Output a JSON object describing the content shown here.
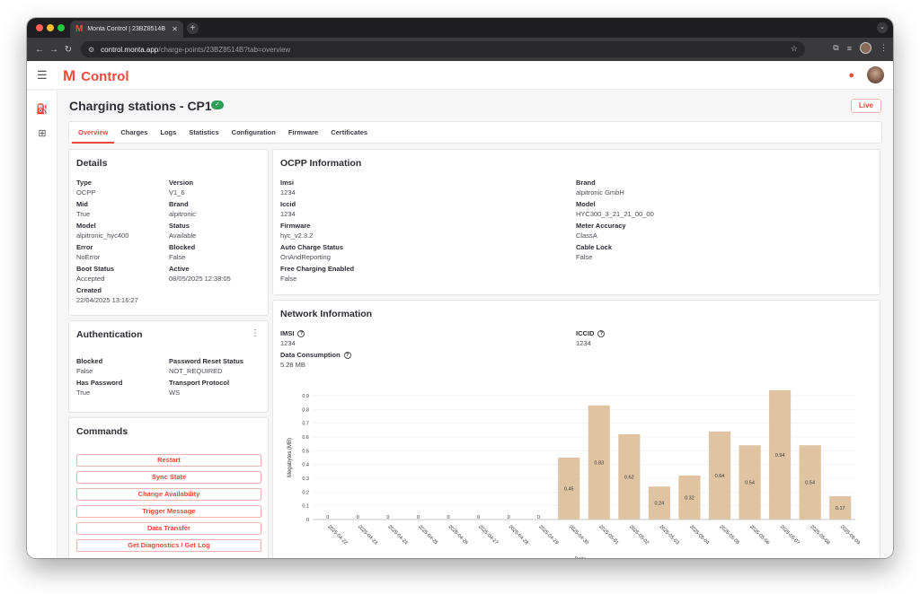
{
  "browser": {
    "tab_title": "Monta Control | 23BZ8514B",
    "tab_favicon": "M",
    "url_host": "control.monta.app",
    "url_path": "/charge-points/23BZ8514B?tab=overview"
  },
  "app": {
    "logo_mark": "M",
    "logo_text": "Control"
  },
  "page": {
    "title": "Charging stations - CP1",
    "live_label": "Live",
    "tabs": [
      "Overview",
      "Charges",
      "Logs",
      "Statistics",
      "Configuration",
      "Firmware",
      "Certificates"
    ],
    "active_tab": "Overview"
  },
  "details": {
    "title": "Details",
    "items": [
      {
        "k": "Type",
        "v": "OCPP"
      },
      {
        "k": "Version",
        "v": "V1_6"
      },
      {
        "k": "Mid",
        "v": "True"
      },
      {
        "k": "Brand",
        "v": "alpitronic"
      },
      {
        "k": "Model",
        "v": "alpitronic_hyc400"
      },
      {
        "k": "Status",
        "v": "Available"
      },
      {
        "k": "Error",
        "v": "NoError"
      },
      {
        "k": "Blocked",
        "v": "False"
      },
      {
        "k": "Boot Status",
        "v": "Accepted"
      },
      {
        "k": "Active",
        "v": "08/05/2025 12:38:05"
      },
      {
        "k": "Created",
        "v": "22/04/2025 13:16:27"
      }
    ]
  },
  "authentication": {
    "title": "Authentication",
    "items": [
      {
        "k": "Blocked",
        "v": "False"
      },
      {
        "k": "Password Reset Status",
        "v": "NOT_REQUIRED"
      },
      {
        "k": "Has Password",
        "v": "True"
      },
      {
        "k": "Transport Protocol",
        "v": "WS"
      }
    ]
  },
  "commands": {
    "title": "Commands",
    "buttons": [
      "Restart",
      "Sync State",
      "Change Availability",
      "Trigger Message",
      "Data Transfer",
      "Get Diagnostics / Get Log"
    ]
  },
  "ocpp": {
    "title": "OCPP Information",
    "left": [
      {
        "k": "Imsi",
        "v": "1234"
      },
      {
        "k": "Iccid",
        "v": "1234"
      },
      {
        "k": "Firmware",
        "v": "hyc_v2.3.2"
      },
      {
        "k": "Auto Charge Status",
        "v": "OnAndReporting"
      },
      {
        "k": "Free Charging Enabled",
        "v": "False"
      }
    ],
    "right": [
      {
        "k": "Brand",
        "v": "alpitronic GmbH"
      },
      {
        "k": "Model",
        "v": "HYC300_3_21_21_00_00"
      },
      {
        "k": "Meter Accuracy",
        "v": "ClassA"
      },
      {
        "k": "Cable Lock",
        "v": "False"
      }
    ]
  },
  "network": {
    "title": "Network Information",
    "imsi_label": "IMSI",
    "imsi_value": "1234",
    "iccid_label": "ICCID",
    "iccid_value": "1234",
    "data_label": "Data Consumption",
    "data_value": "5.28 MB"
  },
  "chart_data": {
    "type": "bar",
    "xlabel": "Date",
    "ylabel": "Megabytes (MB)",
    "ylim": [
      0,
      0.9
    ],
    "yticks": [
      0,
      0.1,
      0.2,
      0.3,
      0.4,
      0.5,
      0.6,
      0.7,
      0.8,
      0.9
    ],
    "bar_color": "#e0c4a2",
    "categories": [
      "2025-04-22",
      "2025-04-23",
      "2025-04-24",
      "2025-04-25",
      "2025-04-26",
      "2025-04-27",
      "2025-04-28",
      "2025-04-29",
      "2025-04-30",
      "2025-05-01",
      "2025-05-02",
      "2025-05-03",
      "2025-05-04",
      "2025-05-05",
      "2025-05-06",
      "2025-05-07",
      "2025-05-08",
      "2025-05-09"
    ],
    "values": [
      0,
      0,
      0,
      0,
      0,
      0,
      0,
      0,
      0.45,
      0.83,
      0.62,
      0.24,
      0.32,
      0.64,
      0.54,
      0.94,
      0.54,
      0.17
    ]
  },
  "colors": {
    "brand": "#f04b3c",
    "status_ok": "#2f9e56"
  }
}
